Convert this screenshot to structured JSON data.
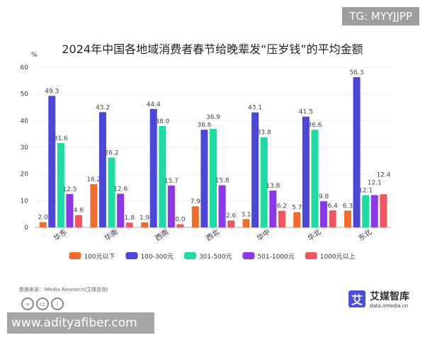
{
  "watermark_top": "TG: MYYJJPP",
  "watermark_bottom": "www.adityafiber.com",
  "source": "数据来源：iMedia Research(艾媒咨询)",
  "logo": {
    "name": "艾媒智库",
    "url": "data.iimedia.cn",
    "mark": "艾"
  },
  "chart_data": {
    "type": "bar",
    "title": "2024年中国各地域消费者春节给晚辈发“压岁钱”的平均金额",
    "ylabel": "%",
    "ylim": [
      0,
      60
    ],
    "yticks": [
      0,
      10,
      20,
      30,
      40,
      50,
      60
    ],
    "grid": true,
    "legend_position": "bottom",
    "categories": [
      "华东",
      "华南",
      "西南",
      "西北",
      "华中",
      "华北",
      "东北"
    ],
    "series": [
      {
        "name": "100元以下",
        "color": "#f36b2b",
        "values": [
          2.0,
          16.2,
          1.9,
          7.9,
          3.1,
          5.7,
          6.3
        ]
      },
      {
        "name": "100-300元",
        "color": "#4b48d8",
        "values": [
          49.3,
          43.2,
          44.4,
          36.6,
          43.1,
          41.5,
          56.3
        ]
      },
      {
        "name": "301-500元",
        "color": "#1ddca3",
        "values": [
          31.6,
          26.2,
          38.0,
          36.9,
          33.8,
          36.6,
          12.1
        ]
      },
      {
        "name": "501-1000元",
        "color": "#8a38e8",
        "values": [
          12.5,
          12.6,
          15.7,
          15.8,
          13.8,
          9.8,
          12.1
        ]
      },
      {
        "name": "1000元以上",
        "color": "#f2555f",
        "values": [
          4.6,
          1.8,
          0.0,
          2.6,
          6.2,
          6.4,
          12.4
        ]
      }
    ]
  }
}
